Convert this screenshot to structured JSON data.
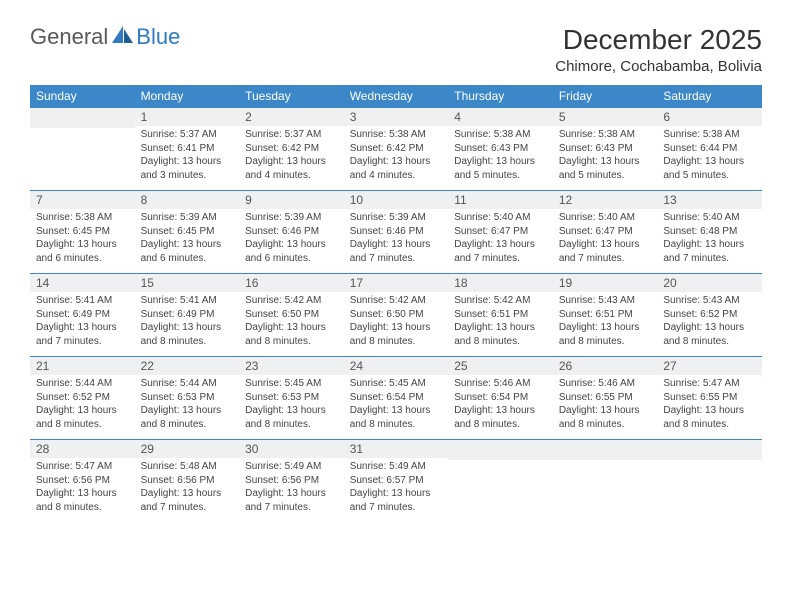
{
  "logo": {
    "text1": "General",
    "text2": "Blue"
  },
  "title": "December 2025",
  "subtitle": "Chimore, Cochabamba, Bolivia",
  "colors": {
    "header_bg": "#3b87c8",
    "header_fg": "#ffffff",
    "daynum_bg": "#eef0f1",
    "border": "#3b87c8",
    "text": "#333333",
    "logo_gray": "#5a5a5a",
    "logo_blue": "#2f7ac0"
  },
  "weekdays": [
    "Sunday",
    "Monday",
    "Tuesday",
    "Wednesday",
    "Thursday",
    "Friday",
    "Saturday"
  ],
  "weeks": [
    [
      {
        "n": "",
        "sr": "",
        "ss": "",
        "dl": ""
      },
      {
        "n": "1",
        "sr": "Sunrise: 5:37 AM",
        "ss": "Sunset: 6:41 PM",
        "dl": "Daylight: 13 hours and 3 minutes."
      },
      {
        "n": "2",
        "sr": "Sunrise: 5:37 AM",
        "ss": "Sunset: 6:42 PM",
        "dl": "Daylight: 13 hours and 4 minutes."
      },
      {
        "n": "3",
        "sr": "Sunrise: 5:38 AM",
        "ss": "Sunset: 6:42 PM",
        "dl": "Daylight: 13 hours and 4 minutes."
      },
      {
        "n": "4",
        "sr": "Sunrise: 5:38 AM",
        "ss": "Sunset: 6:43 PM",
        "dl": "Daylight: 13 hours and 5 minutes."
      },
      {
        "n": "5",
        "sr": "Sunrise: 5:38 AM",
        "ss": "Sunset: 6:43 PM",
        "dl": "Daylight: 13 hours and 5 minutes."
      },
      {
        "n": "6",
        "sr": "Sunrise: 5:38 AM",
        "ss": "Sunset: 6:44 PM",
        "dl": "Daylight: 13 hours and 5 minutes."
      }
    ],
    [
      {
        "n": "7",
        "sr": "Sunrise: 5:38 AM",
        "ss": "Sunset: 6:45 PM",
        "dl": "Daylight: 13 hours and 6 minutes."
      },
      {
        "n": "8",
        "sr": "Sunrise: 5:39 AM",
        "ss": "Sunset: 6:45 PM",
        "dl": "Daylight: 13 hours and 6 minutes."
      },
      {
        "n": "9",
        "sr": "Sunrise: 5:39 AM",
        "ss": "Sunset: 6:46 PM",
        "dl": "Daylight: 13 hours and 6 minutes."
      },
      {
        "n": "10",
        "sr": "Sunrise: 5:39 AM",
        "ss": "Sunset: 6:46 PM",
        "dl": "Daylight: 13 hours and 7 minutes."
      },
      {
        "n": "11",
        "sr": "Sunrise: 5:40 AM",
        "ss": "Sunset: 6:47 PM",
        "dl": "Daylight: 13 hours and 7 minutes."
      },
      {
        "n": "12",
        "sr": "Sunrise: 5:40 AM",
        "ss": "Sunset: 6:47 PM",
        "dl": "Daylight: 13 hours and 7 minutes."
      },
      {
        "n": "13",
        "sr": "Sunrise: 5:40 AM",
        "ss": "Sunset: 6:48 PM",
        "dl": "Daylight: 13 hours and 7 minutes."
      }
    ],
    [
      {
        "n": "14",
        "sr": "Sunrise: 5:41 AM",
        "ss": "Sunset: 6:49 PM",
        "dl": "Daylight: 13 hours and 7 minutes."
      },
      {
        "n": "15",
        "sr": "Sunrise: 5:41 AM",
        "ss": "Sunset: 6:49 PM",
        "dl": "Daylight: 13 hours and 8 minutes."
      },
      {
        "n": "16",
        "sr": "Sunrise: 5:42 AM",
        "ss": "Sunset: 6:50 PM",
        "dl": "Daylight: 13 hours and 8 minutes."
      },
      {
        "n": "17",
        "sr": "Sunrise: 5:42 AM",
        "ss": "Sunset: 6:50 PM",
        "dl": "Daylight: 13 hours and 8 minutes."
      },
      {
        "n": "18",
        "sr": "Sunrise: 5:42 AM",
        "ss": "Sunset: 6:51 PM",
        "dl": "Daylight: 13 hours and 8 minutes."
      },
      {
        "n": "19",
        "sr": "Sunrise: 5:43 AM",
        "ss": "Sunset: 6:51 PM",
        "dl": "Daylight: 13 hours and 8 minutes."
      },
      {
        "n": "20",
        "sr": "Sunrise: 5:43 AM",
        "ss": "Sunset: 6:52 PM",
        "dl": "Daylight: 13 hours and 8 minutes."
      }
    ],
    [
      {
        "n": "21",
        "sr": "Sunrise: 5:44 AM",
        "ss": "Sunset: 6:52 PM",
        "dl": "Daylight: 13 hours and 8 minutes."
      },
      {
        "n": "22",
        "sr": "Sunrise: 5:44 AM",
        "ss": "Sunset: 6:53 PM",
        "dl": "Daylight: 13 hours and 8 minutes."
      },
      {
        "n": "23",
        "sr": "Sunrise: 5:45 AM",
        "ss": "Sunset: 6:53 PM",
        "dl": "Daylight: 13 hours and 8 minutes."
      },
      {
        "n": "24",
        "sr": "Sunrise: 5:45 AM",
        "ss": "Sunset: 6:54 PM",
        "dl": "Daylight: 13 hours and 8 minutes."
      },
      {
        "n": "25",
        "sr": "Sunrise: 5:46 AM",
        "ss": "Sunset: 6:54 PM",
        "dl": "Daylight: 13 hours and 8 minutes."
      },
      {
        "n": "26",
        "sr": "Sunrise: 5:46 AM",
        "ss": "Sunset: 6:55 PM",
        "dl": "Daylight: 13 hours and 8 minutes."
      },
      {
        "n": "27",
        "sr": "Sunrise: 5:47 AM",
        "ss": "Sunset: 6:55 PM",
        "dl": "Daylight: 13 hours and 8 minutes."
      }
    ],
    [
      {
        "n": "28",
        "sr": "Sunrise: 5:47 AM",
        "ss": "Sunset: 6:56 PM",
        "dl": "Daylight: 13 hours and 8 minutes."
      },
      {
        "n": "29",
        "sr": "Sunrise: 5:48 AM",
        "ss": "Sunset: 6:56 PM",
        "dl": "Daylight: 13 hours and 7 minutes."
      },
      {
        "n": "30",
        "sr": "Sunrise: 5:49 AM",
        "ss": "Sunset: 6:56 PM",
        "dl": "Daylight: 13 hours and 7 minutes."
      },
      {
        "n": "31",
        "sr": "Sunrise: 5:49 AM",
        "ss": "Sunset: 6:57 PM",
        "dl": "Daylight: 13 hours and 7 minutes."
      },
      {
        "n": "",
        "sr": "",
        "ss": "",
        "dl": ""
      },
      {
        "n": "",
        "sr": "",
        "ss": "",
        "dl": ""
      },
      {
        "n": "",
        "sr": "",
        "ss": "",
        "dl": ""
      }
    ]
  ]
}
